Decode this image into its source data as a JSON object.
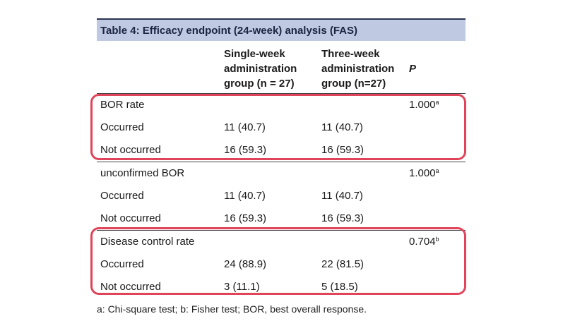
{
  "table": {
    "title": "Table 4: Efficacy endpoint (24-week) analysis (FAS)",
    "headers": {
      "col1": [
        "Single-week",
        "administration",
        "group (n = 27)"
      ],
      "col2": [
        "Three-week",
        "administration",
        "group (n=27)"
      ],
      "col3": "P"
    },
    "rows": [
      {
        "label": "BOR rate",
        "c1": "",
        "c2": "",
        "p": "1.000",
        "sup": "a"
      },
      {
        "label": "Occurred",
        "c1": "11 (40.7)",
        "c2": "11 (40.7)",
        "p": "",
        "sup": ""
      },
      {
        "label": "Not occurred",
        "c1": "16 (59.3)",
        "c2": "16 (59.3)",
        "p": "",
        "sup": ""
      },
      {
        "label": "unconfirmed BOR",
        "c1": "",
        "c2": "",
        "p": "1.000",
        "sup": "a"
      },
      {
        "label": "Occurred",
        "c1": "11 (40.7)",
        "c2": "11 (40.7)",
        "p": "",
        "sup": ""
      },
      {
        "label": "Not occurred",
        "c1": "16 (59.3)",
        "c2": "16 (59.3)",
        "p": "",
        "sup": ""
      },
      {
        "label": "Disease control rate",
        "c1": "",
        "c2": "",
        "p": "0.704",
        "sup": "b"
      },
      {
        "label": "Occurred",
        "c1": "24 (88.9)",
        "c2": "22 (81.5)",
        "p": "",
        "sup": ""
      },
      {
        "label": "Not occurred",
        "c1": "3 (11.1)",
        "c2": "5 (18.5)",
        "p": "",
        "sup": ""
      }
    ],
    "footnote": "a: Chi-square test; b: Fisher test; BOR, best overall response."
  },
  "highlight_color": "#e0445a"
}
